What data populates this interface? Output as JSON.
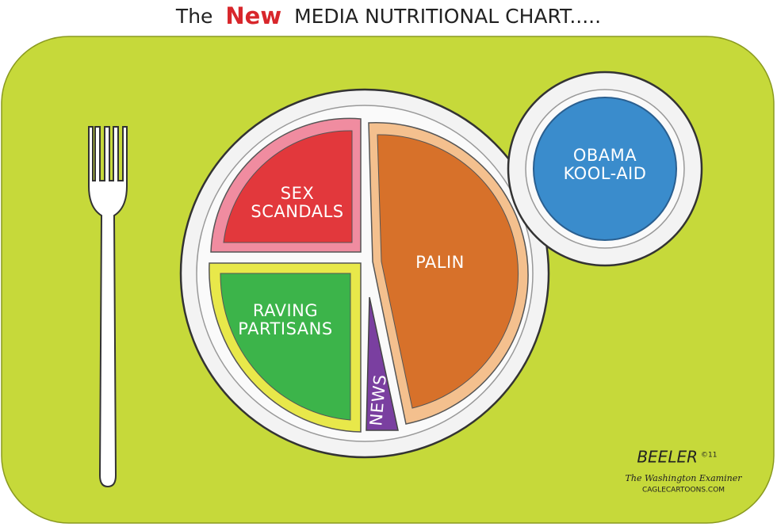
{
  "title": {
    "before": "The",
    "highlight": "New",
    "after": "MEDIA NUTRITIONAL CHART....."
  },
  "plate": {
    "sections": [
      {
        "label": [
          "SEX",
          "SCANDALS"
        ]
      },
      {
        "label": [
          "RAVING",
          "PARTISANS"
        ]
      },
      {
        "label": [
          "NEWS"
        ]
      },
      {
        "label": [
          "PALIN"
        ]
      }
    ]
  },
  "bowl": {
    "label": [
      "OBAMA",
      "KOOL-AID"
    ]
  },
  "credits": {
    "signature": "BEELER",
    "copyright": "©11",
    "publication": "The Washington Examiner",
    "website": "CAGLECARTOONS.COM"
  }
}
